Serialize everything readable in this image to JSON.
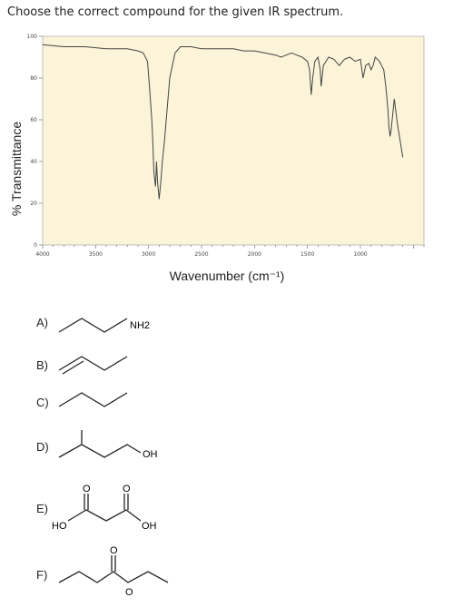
{
  "question": "Choose the correct compound for the given IR spectrum.",
  "chart_data": {
    "type": "line",
    "xlabel": "Wavenumber (cm⁻¹)",
    "ylabel": "% Transmittance",
    "xlim": [
      4000,
      400
    ],
    "ylim": [
      0,
      100
    ],
    "xticks": [
      "4000",
      "3500",
      "3000",
      "2500",
      "2000",
      "1500",
      "1000"
    ],
    "yticks": [
      "0",
      "20",
      "40",
      "60",
      "80",
      "100"
    ],
    "series": [
      {
        "x": [
          4000,
          3800,
          3600,
          3400,
          3200,
          3100,
          3050,
          3010,
          2990,
          2970,
          2960,
          2950,
          2935,
          2925,
          2915,
          2900,
          2885,
          2870,
          2860,
          2850,
          2830,
          2800,
          2750,
          2700,
          2600,
          2500,
          2400,
          2300,
          2200,
          2100,
          2000,
          1900,
          1800,
          1750,
          1700,
          1650,
          1600,
          1550,
          1500,
          1480,
          1465,
          1450,
          1430,
          1400,
          1380,
          1370,
          1350,
          1300,
          1250,
          1200,
          1150,
          1100,
          1050,
          1000,
          975,
          950,
          920,
          900,
          880,
          860,
          840,
          820,
          800,
          780,
          760,
          740,
          730,
          720,
          710,
          700,
          680,
          650,
          600
        ],
        "y": [
          96,
          95,
          95,
          94,
          94,
          93,
          92,
          88,
          75,
          60,
          50,
          35,
          28,
          40,
          30,
          22,
          30,
          40,
          45,
          50,
          62,
          80,
          92,
          95,
          95,
          94,
          94,
          94,
          94,
          93,
          93,
          92,
          91,
          90,
          91,
          92,
          91,
          90,
          88,
          84,
          72,
          80,
          88,
          90,
          84,
          76,
          86,
          90,
          89,
          86,
          89,
          90,
          88,
          89,
          80,
          86,
          87,
          84,
          86,
          90,
          89,
          88,
          86,
          84,
          76,
          65,
          56,
          52,
          55,
          60,
          70,
          58,
          42
        ]
      }
    ]
  },
  "options": {
    "a": {
      "label": "A)",
      "atom": "NH2"
    },
    "b": {
      "label": "B)"
    },
    "c": {
      "label": "C)"
    },
    "d": {
      "label": "D)",
      "atom": "OH"
    },
    "e": {
      "label": "E)",
      "ho": "HO",
      "oh": "OH",
      "o1": "O",
      "o2": "O"
    },
    "f": {
      "label": "F)",
      "o1": "O",
      "o2": "O"
    }
  }
}
